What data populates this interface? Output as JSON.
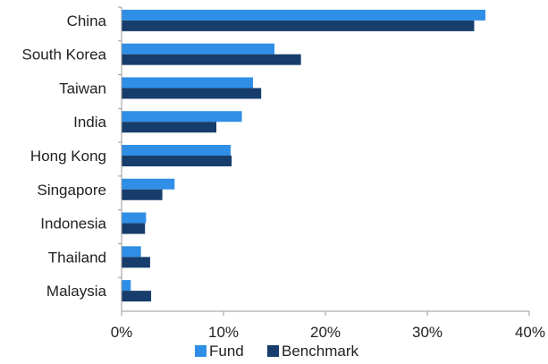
{
  "chart_data": {
    "type": "bar",
    "orientation": "horizontal",
    "categories": [
      "China",
      "South Korea",
      "Taiwan",
      "India",
      "Hong Kong",
      "Singapore",
      "Indonesia",
      "Thailand",
      "Malaysia"
    ],
    "series": [
      {
        "name": "Fund",
        "color": "#2f8ee6",
        "values": [
          35.7,
          15.0,
          12.9,
          11.8,
          10.7,
          5.2,
          2.4,
          1.9,
          0.9
        ]
      },
      {
        "name": "Benchmark",
        "color": "#163d6b",
        "values": [
          34.6,
          17.6,
          13.7,
          9.3,
          10.8,
          4.0,
          2.3,
          2.8,
          2.9
        ]
      }
    ],
    "xlim": [
      0,
      40
    ],
    "xticks": [
      0,
      10,
      20,
      30,
      40
    ],
    "xtick_labels": [
      "0%",
      "10%",
      "20%",
      "30%",
      "40%"
    ],
    "grid": false,
    "legend": "bottom"
  }
}
